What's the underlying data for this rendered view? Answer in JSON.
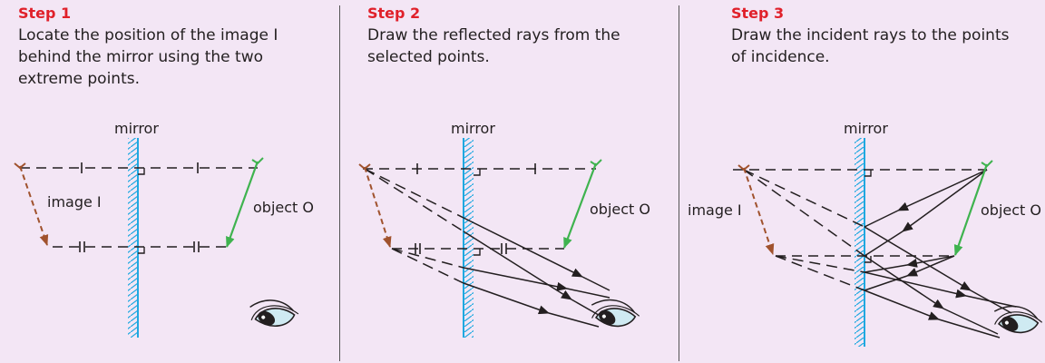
{
  "steps": [
    {
      "title": "Step 1",
      "description_lines": [
        "Locate the position of the image I",
        "behind the mirror using the two",
        "extreme points."
      ],
      "labels": {
        "mirror": "mirror",
        "image": "image I",
        "object": "object O"
      }
    },
    {
      "title": "Step 2",
      "description_lines": [
        "Draw the reflected rays from the",
        "selected points."
      ],
      "labels": {
        "mirror": "mirror",
        "object": "object O"
      }
    },
    {
      "title": "Step 3",
      "description_lines": [
        "Draw the incident rays to the points",
        "of incidence."
      ],
      "labels": {
        "mirror": "mirror",
        "image": "image I",
        "object": "object O"
      }
    }
  ],
  "colors": {
    "background": "#f3e6f5",
    "step_title": "#e0202a",
    "mirror": "#1fa8e0",
    "object_arrow": "#3fb34f",
    "image_arrow": "#a0522d",
    "eye_fill": "#cfeaf2",
    "rays": "#231f20"
  },
  "icons": [
    "eye-icon"
  ]
}
